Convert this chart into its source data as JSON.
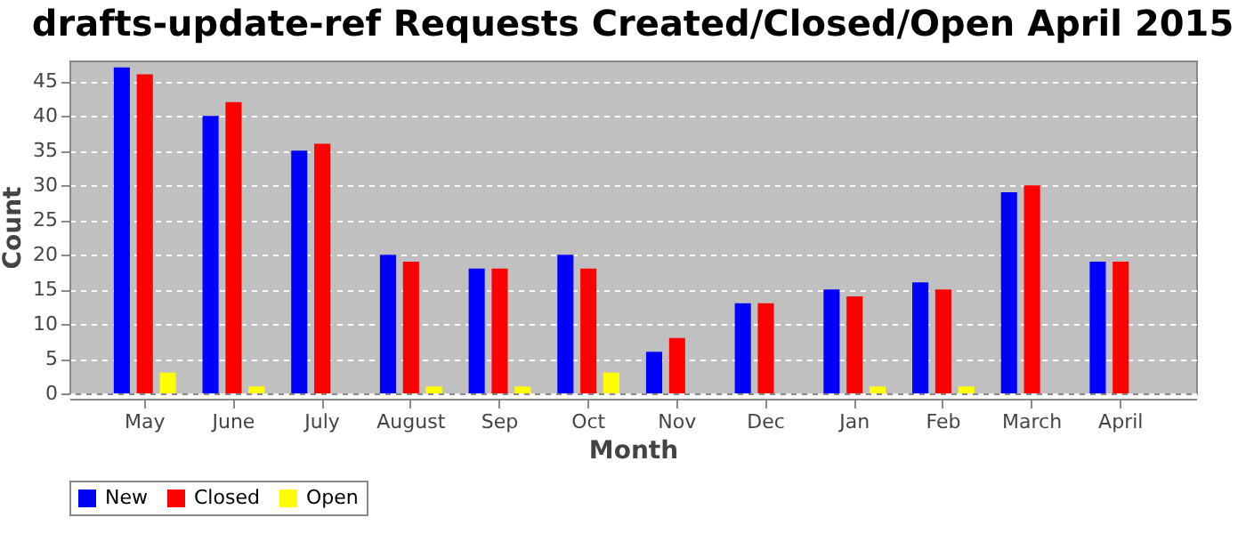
{
  "chart_data": {
    "type": "bar",
    "title": "drafts-update-ref Requests Created/Closed/Open April 2015",
    "xlabel": "Month",
    "ylabel": "Count",
    "categories": [
      "May",
      "June",
      "July",
      "August",
      "Sep",
      "Oct",
      "Nov",
      "Dec",
      "Jan",
      "Feb",
      "March",
      "April"
    ],
    "series": [
      {
        "name": "New",
        "color": "#0000ff",
        "values": [
          47,
          40,
          35,
          20,
          18,
          20,
          6,
          13,
          15,
          16,
          29,
          19
        ]
      },
      {
        "name": "Closed",
        "color": "#ff0000",
        "values": [
          46,
          42,
          36,
          19,
          18,
          18,
          8,
          13,
          14,
          15,
          30,
          19
        ]
      },
      {
        "name": "Open",
        "color": "#ffff00",
        "values": [
          3,
          1,
          0,
          1,
          1,
          3,
          0,
          0,
          1,
          1,
          0,
          0
        ]
      }
    ],
    "ylim": [
      0,
      48
    ],
    "yticks": [
      0,
      5,
      10,
      15,
      20,
      25,
      30,
      35,
      40,
      45
    ],
    "grid": "y",
    "legend": "bottom"
  }
}
